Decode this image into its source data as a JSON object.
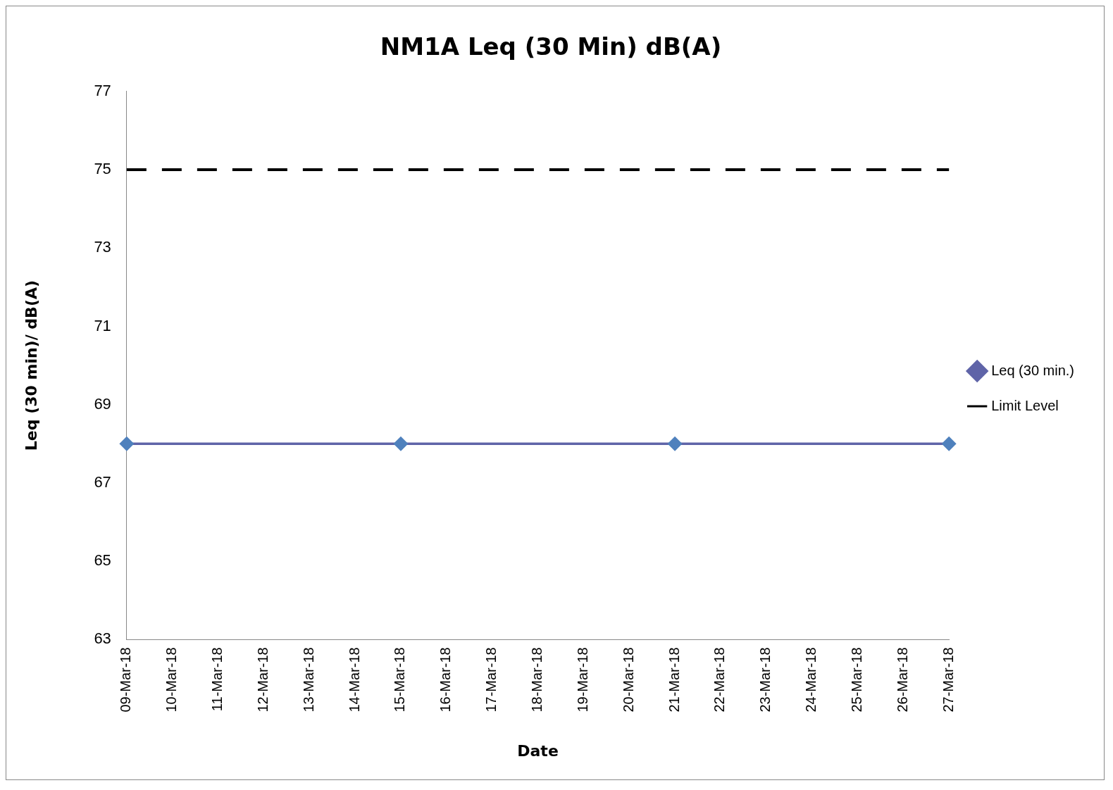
{
  "chart_data": {
    "type": "line",
    "title": "NM1A Leq (30 Min) dB(A)",
    "xlabel": "Date",
    "ylabel": "Leq (30 min)/ dB(A)",
    "categories": [
      "09-Mar-18",
      "10-Mar-18",
      "11-Mar-18",
      "12-Mar-18",
      "13-Mar-18",
      "14-Mar-18",
      "15-Mar-18",
      "16-Mar-18",
      "17-Mar-18",
      "18-Mar-18",
      "19-Mar-18",
      "20-Mar-18",
      "21-Mar-18",
      "22-Mar-18",
      "23-Mar-18",
      "24-Mar-18",
      "25-Mar-18",
      "26-Mar-18",
      "27-Mar-18"
    ],
    "series": [
      {
        "name": "Leq (30 min.)",
        "color": "#5f64a8",
        "x": [
          "09-Mar-18",
          "15-Mar-18",
          "21-Mar-18",
          "27-Mar-18"
        ],
        "values": [
          68,
          68,
          68,
          68
        ],
        "marker": "diamond",
        "line_style": "solid"
      },
      {
        "name": "Limit Level",
        "color": "#000000",
        "x": [
          "09-Mar-18",
          "27-Mar-18"
        ],
        "values": [
          75,
          75
        ],
        "marker": "none",
        "line_style": "dashed"
      }
    ],
    "ylim": [
      63,
      77
    ],
    "yticks": [
      63,
      65,
      67,
      69,
      71,
      73,
      75,
      77
    ],
    "grid": false,
    "legend": "right"
  }
}
